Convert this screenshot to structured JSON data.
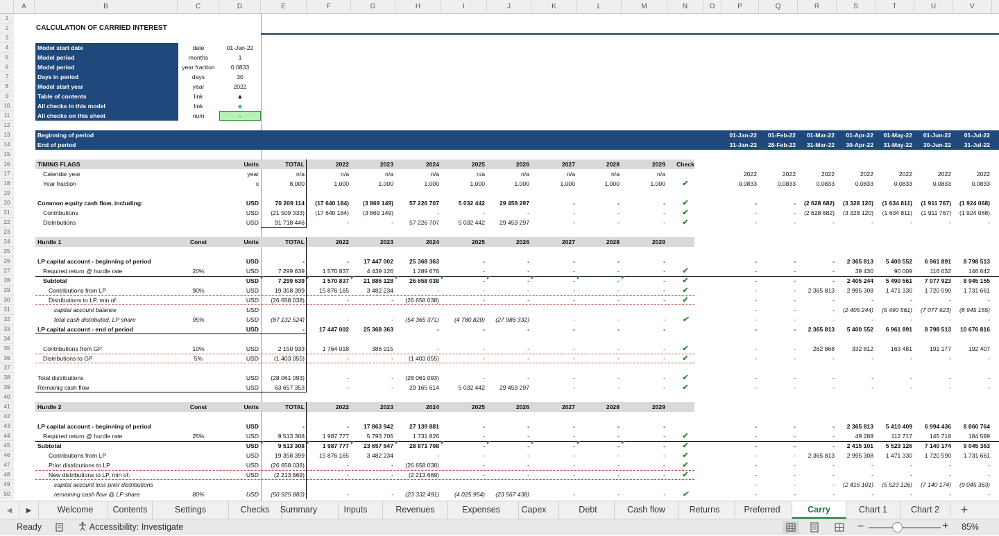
{
  "columns": [
    "A",
    "B",
    "C",
    "D",
    "E",
    "F",
    "G",
    "H",
    "I",
    "J",
    "K",
    "L",
    "M",
    "N",
    "O",
    "P",
    "Q",
    "R",
    "S",
    "T",
    "U",
    "V"
  ],
  "rownums": [
    "1",
    "2",
    "3",
    "4",
    "5",
    "6",
    "7",
    "8",
    "9",
    "10",
    "11",
    "12",
    "13",
    "14",
    "15",
    "16",
    "17",
    "18",
    "19",
    "20",
    "21",
    "22",
    "23",
    "24",
    "25",
    "26",
    "27",
    "28",
    "29",
    "30",
    "31",
    "32",
    "33",
    "34",
    "35",
    "36",
    "37",
    "38",
    "39",
    "40",
    "41",
    "42",
    "43",
    "44",
    "45",
    "46",
    "47",
    "48",
    "49",
    "50"
  ],
  "sheet_title": "CALCULATION OF CARRIED INTEREST",
  "model_info": [
    {
      "label": "Model start date",
      "unit": "date",
      "value": "01-Jan-22"
    },
    {
      "label": "Model period",
      "unit": "months",
      "value": "1"
    },
    {
      "label": "Model period",
      "unit": "year fraction",
      "value": "0.0833"
    },
    {
      "label": "Days in period",
      "unit": "days",
      "value": "30"
    },
    {
      "label": "Model start year",
      "unit": "year",
      "value": "2022"
    },
    {
      "label": "Table of contents",
      "unit": "link",
      "value": "▲"
    },
    {
      "label": "All checks in this model",
      "unit": "link",
      "value": "●"
    },
    {
      "label": "All checks on this sheet",
      "unit": "num",
      "value": "-"
    }
  ],
  "period_labels": {
    "begin": "Beginning of period",
    "end": "End of period"
  },
  "period_begin": [
    "01-Jan-22",
    "01-Feb-22",
    "01-Mar-22",
    "01-Apr-22",
    "01-May-22",
    "01-Jun-22",
    "01-Jul-22"
  ],
  "period_end": [
    "31-Jan-22",
    "28-Feb-22",
    "31-Mar-22",
    "30-Apr-22",
    "31-May-22",
    "30-Jun-22",
    "31-Jul-22"
  ],
  "rows": [
    {
      "r": 16,
      "style": "section",
      "B": "TIMING FLAGS",
      "D": "Units",
      "E": "TOTAL",
      "F": "2022",
      "G": "2023",
      "H": "2024",
      "I": "2025",
      "J": "2026",
      "K": "2027",
      "L": "2028",
      "M": "2029",
      "N": "Check"
    },
    {
      "r": 17,
      "B": "Calendar year",
      "ind": 1,
      "D": "year",
      "E": "n/a",
      "F": "n/a",
      "G": "n/a",
      "H": "n/a",
      "I": "n/a",
      "J": "n/a",
      "K": "n/a",
      "L": "n/a",
      "M": "n/a",
      "P": "2022",
      "Q": "2022",
      "R": "2022",
      "S": "2022",
      "T": "2022",
      "U": "2022",
      "V": "2022"
    },
    {
      "r": 18,
      "B": "Year fraction",
      "ind": 1,
      "D": "x",
      "E": "8.000",
      "F": "1.000",
      "G": "1.000",
      "H": "1.000",
      "I": "1.000",
      "J": "1.000",
      "K": "1.000",
      "L": "1.000",
      "M": "1.000",
      "N": "✔",
      "P": "0.0833",
      "Q": "0.0833",
      "R": "0.0833",
      "S": "0.0833",
      "T": "0.0833",
      "U": "0.0833",
      "V": "0.0833"
    },
    {
      "r": 20,
      "bold": true,
      "B": "Common equity cash flow, including:",
      "D": "USD",
      "E": "70 209 114",
      "F": "(17 640 184)",
      "G": "(3 869 149)",
      "H": "57 226 707",
      "I": "5 032 442",
      "J": "29 459 297",
      "K": "-",
      "L": "-",
      "M": "-",
      "N": "✔",
      "P": "-",
      "Q": "-",
      "R": "(2 628 682)",
      "S": "(3 328 120)",
      "T": "(1 634 811)",
      "U": "(1 911 767)",
      "V": "(1 924 068)"
    },
    {
      "r": 21,
      "B": "Contributions",
      "ind": 1,
      "D": "USD",
      "E": "(21 509 333)",
      "F": "(17 640 184)",
      "G": "(3 869 149)",
      "H": "-",
      "I": "-",
      "J": "-",
      "K": "-",
      "L": "-",
      "M": "-",
      "N": "✔",
      "P": "-",
      "Q": "-",
      "R": "(2 628 682)",
      "S": "(3 328 120)",
      "T": "(1 634 811)",
      "U": "(1 911 767)",
      "V": "(1 924 068)"
    },
    {
      "r": 22,
      "B": "Distributions",
      "ind": 1,
      "D": "USD",
      "E": "91 718 446",
      "F": "-",
      "G": "-",
      "H": "57 226 707",
      "I": "5 032 442",
      "J": "29 459 297",
      "K": "-",
      "L": "-",
      "M": "-",
      "N": "✔",
      "P": "-",
      "Q": "-",
      "R": "-",
      "S": "-",
      "T": "-",
      "U": "-",
      "V": "-"
    },
    {
      "r": 24,
      "style": "section",
      "B": "Hurdle 1",
      "C": "Const",
      "D": "Units",
      "E": "TOTAL",
      "F": "2022",
      "G": "2023",
      "H": "2024",
      "I": "2025",
      "J": "2026",
      "K": "2027",
      "L": "2028",
      "M": "2029"
    },
    {
      "r": 26,
      "bold": true,
      "B": "LP capital account - beginning of period",
      "D": "USD",
      "E": "-",
      "F": "-",
      "G": "17 447 002",
      "H": "25 368 363",
      "I": "-",
      "J": "-",
      "K": "-",
      "L": "-",
      "M": "-",
      "P": "-",
      "Q": "-",
      "R": "-",
      "S": "2 365 813",
      "T": "5 400 552",
      "U": "6 961 891",
      "V": "8 798 513"
    },
    {
      "r": 27,
      "B": "Required return @ hurdle rate",
      "ind": 1,
      "C": "20%",
      "D": "USD",
      "E": "7 299 639",
      "F": "1 570 837",
      "G": "4 439 126",
      "H": "1 289 676",
      "I": "-",
      "J": "-",
      "K": "-",
      "L": "-",
      "M": "-",
      "N": "✔",
      "P": "-",
      "Q": "-",
      "R": "-",
      "S": "39 430",
      "T": "90 009",
      "U": "116 032",
      "V": "146 642"
    },
    {
      "r": 28,
      "bold": true,
      "B": "Subtotal",
      "ind": 1,
      "D": "USD",
      "E": "7 299 639",
      "F": "1 570 837",
      "G": "21 886 128",
      "H": "26 658 038",
      "I": "-",
      "J": "-",
      "K": "-",
      "L": "-",
      "M": "-",
      "N": "✔",
      "P": "-",
      "Q": "-",
      "R": "-",
      "S": "2 405 244",
      "T": "5 490 561",
      "U": "7 077 923",
      "V": "8 945 155"
    },
    {
      "r": 29,
      "B": "Contributions from LP",
      "ind": 2,
      "C": "90%",
      "D": "USD",
      "E": "19 358 399",
      "F": "15 876 165",
      "G": "3 482 234",
      "H": "-",
      "I": "-",
      "J": "-",
      "K": "-",
      "L": "-",
      "M": "-",
      "N": "✔",
      "P": "-",
      "Q": "-",
      "R": "2 365 813",
      "S": "2 995 308",
      "T": "1 471 330",
      "U": "1 720 590",
      "V": "1 731 661"
    },
    {
      "r": 30,
      "B": "Distributions to LP, min of:",
      "ind": 2,
      "D": "USD",
      "E": "(26 658 038)",
      "F": "-",
      "G": "-",
      "H": "(26 658 038)",
      "I": "-",
      "J": "-",
      "K": "-",
      "L": "-",
      "M": "-",
      "N": "✔",
      "P": "-",
      "Q": "-",
      "R": "-",
      "S": "-",
      "T": "-",
      "U": "-",
      "V": "-"
    },
    {
      "r": 31,
      "italic": true,
      "B": "capital account balance",
      "ind": 3,
      "D": "USD",
      "P": "-",
      "Q": "-",
      "R": "-",
      "S": "(2 405 244)",
      "T": "(5 490 561)",
      "U": "(7 077 923)",
      "V": "(8 945 155)"
    },
    {
      "r": 32,
      "italic": true,
      "B": "total cash distributed, LP share",
      "ind": 3,
      "C": "95%",
      "D": "USD",
      "E": "(87 132 524)",
      "F": "-",
      "G": "-",
      "H": "(54 365 371)",
      "I": "(4 780 820)",
      "J": "(27 986 332)",
      "K": "-",
      "L": "-",
      "M": "-",
      "N": "✔",
      "P": "-",
      "Q": "-",
      "R": "-",
      "S": "-",
      "T": "-",
      "U": "-",
      "V": "-"
    },
    {
      "r": 33,
      "bold": true,
      "B": "LP capital account - end of period",
      "D": "USD",
      "E": "-",
      "F": "17 447 002",
      "G": "25 368 363",
      "H": "-",
      "I": "-",
      "J": "-",
      "K": "-",
      "L": "-",
      "M": "-",
      "P": "-",
      "Q": "-",
      "R": "2 365 813",
      "S": "5 400 552",
      "T": "6 961 891",
      "U": "8 798 513",
      "V": "10 676 816"
    },
    {
      "r": 35,
      "B": "Contributions from GP",
      "ind": 1,
      "C": "10%",
      "D": "USD",
      "E": "2 150 933",
      "F": "1 764 018",
      "G": "386 915",
      "H": "-",
      "I": "-",
      "J": "-",
      "K": "-",
      "L": "-",
      "M": "-",
      "N": "✔",
      "P": "-",
      "Q": "-",
      "R": "262 868",
      "S": "332 812",
      "T": "163 481",
      "U": "191 177",
      "V": "192 407"
    },
    {
      "r": 36,
      "B": "Distributions to GP",
      "ind": 1,
      "C": "5%",
      "D": "USD",
      "E": "(1 403 055)",
      "F": "-",
      "G": "-",
      "H": "(1 403 055)",
      "I": "-",
      "J": "-",
      "K": "-",
      "L": "-",
      "M": "-",
      "N": "✔",
      "P": "-",
      "Q": "-",
      "R": "-",
      "S": "-",
      "T": "-",
      "U": "-",
      "V": "-"
    },
    {
      "r": 38,
      "B": "Total distributions",
      "D": "USD",
      "E": "(28 061 093)",
      "F": "-",
      "G": "-",
      "H": "(28 061 093)",
      "I": "-",
      "J": "-",
      "K": "-",
      "L": "-",
      "M": "-",
      "N": "✔",
      "P": "-",
      "Q": "-",
      "R": "-",
      "S": "-",
      "T": "-",
      "U": "-",
      "V": "-"
    },
    {
      "r": 39,
      "B": "Remainig cash flow",
      "D": "USD",
      "E": "63 657 353",
      "F": "-",
      "G": "-",
      "H": "29 165 614",
      "I": "5 032 442",
      "J": "29 459 297",
      "K": "-",
      "L": "-",
      "M": "-",
      "N": "✔",
      "P": "-",
      "Q": "-",
      "R": "-",
      "S": "-",
      "T": "-",
      "U": "-",
      "V": "-"
    },
    {
      "r": 41,
      "style": "section",
      "B": "Hurdle 2",
      "C": "Const",
      "D": "Units",
      "E": "TOTAL",
      "F": "2022",
      "G": "2023",
      "H": "2024",
      "I": "2025",
      "J": "2026",
      "K": "2027",
      "L": "2028",
      "M": "2029"
    },
    {
      "r": 43,
      "bold": true,
      "B": "LP capital account - beginning of period",
      "D": "USD",
      "E": "-",
      "F": "-",
      "G": "17 863 942",
      "H": "27 139 881",
      "I": "-",
      "J": "-",
      "K": "-",
      "L": "-",
      "M": "-",
      "P": "-",
      "Q": "-",
      "R": "-",
      "S": "2 365 813",
      "T": "5 410 409",
      "U": "6 994 436",
      "V": "8 860 764"
    },
    {
      "r": 44,
      "B": "Required return @ hurdle rate",
      "ind": 1,
      "C": "25%",
      "D": "USD",
      "E": "9 513 308",
      "F": "1 987 777",
      "G": "5 793 705",
      "H": "1 731 826",
      "I": "-",
      "J": "-",
      "K": "-",
      "L": "-",
      "M": "-",
      "N": "✔",
      "P": "-",
      "Q": "-",
      "R": "-",
      "S": "49 288",
      "T": "112 717",
      "U": "145 718",
      "V": "184 599"
    },
    {
      "r": 45,
      "bold": true,
      "B": "Subtotal",
      "D": "USD",
      "E": "9 513 308",
      "F": "1 987 777",
      "G": "23 657 647",
      "H": "28 871 708",
      "I": "-",
      "J": "-",
      "K": "-",
      "L": "-",
      "M": "-",
      "N": "✔",
      "P": "-",
      "Q": "-",
      "R": "-",
      "S": "2 415 101",
      "T": "5 523 126",
      "U": "7 140 174",
      "V": "9 045 363"
    },
    {
      "r": 46,
      "B": "Contributions from LP",
      "ind": 2,
      "D": "USD",
      "E": "19 358 399",
      "F": "15 876 165",
      "G": "3 482 234",
      "H": "-",
      "I": "-",
      "J": "-",
      "K": "-",
      "L": "-",
      "M": "-",
      "N": "✔",
      "P": "-",
      "Q": "-",
      "R": "2 365 813",
      "S": "2 995 308",
      "T": "1 471 330",
      "U": "1 720 590",
      "V": "1 731 661"
    },
    {
      "r": 47,
      "B": "Prior distributions to LP",
      "ind": 2,
      "D": "USD",
      "E": "(26 658 038)",
      "F": "-",
      "G": "-",
      "H": "(26 658 038)",
      "I": "-",
      "J": "-",
      "K": "-",
      "L": "-",
      "M": "-",
      "N": "✔",
      "P": "-",
      "Q": "-",
      "R": "-",
      "S": "-",
      "T": "-",
      "U": "-",
      "V": "-"
    },
    {
      "r": 48,
      "B": "New distributions to LP, min of:",
      "ind": 2,
      "D": "USD",
      "E": "(2 213 669)",
      "F": "-",
      "G": "-",
      "H": "(2 213 669)",
      "I": "-",
      "J": "-",
      "K": "-",
      "L": "-",
      "M": "-",
      "N": "✔",
      "P": "-",
      "Q": "-",
      "R": "-",
      "S": "-",
      "T": "-",
      "U": "-",
      "V": "-"
    },
    {
      "r": 49,
      "italic": true,
      "B": "capital account less prior distributions",
      "ind": 3,
      "P": "-",
      "Q": "-",
      "R": "-",
      "S": "(2 415 101)",
      "T": "(5 523 126)",
      "U": "(7 140 174)",
      "V": "(9 045 363)"
    },
    {
      "r": 50,
      "italic": true,
      "B": "remaining cash flow @ LP share",
      "ind": 3,
      "C": "80%",
      "D": "USD",
      "E": "(50 925 883)",
      "F": "-",
      "G": "-",
      "H": "(23 332 491)",
      "I": "(4 025 954)",
      "J": "(23 567 438)",
      "K": "-",
      "L": "-",
      "M": "-",
      "N": "✔",
      "P": "-",
      "Q": "-",
      "R": "-",
      "S": "-",
      "T": "-",
      "U": "-",
      "V": "-"
    }
  ],
  "tabs": [
    "Welcome",
    "Contents",
    "Settings",
    "Checks",
    "Summary",
    "Inputs",
    "Revenues",
    "Expenses",
    "Capex",
    "Debt",
    "Cash flow",
    "Returns",
    "Preferred",
    "Carry",
    "Chart 1",
    "Chart 2"
  ],
  "active_tab": "Carry",
  "nav": {
    "prev": "◀",
    "next": "▶",
    "add": "+"
  },
  "status": {
    "ready": "Ready",
    "accessibility": "Accessibility: Investigate",
    "zoom": "85%",
    "zoom_minus": "−",
    "zoom_plus": "+"
  },
  "colors": {
    "navy": "#1f497d",
    "check_green": "#2e8b2e",
    "active_tab_green": "#1e7a3c",
    "section_gray": "#d9d9d9",
    "dash_red": "#c0504d"
  }
}
